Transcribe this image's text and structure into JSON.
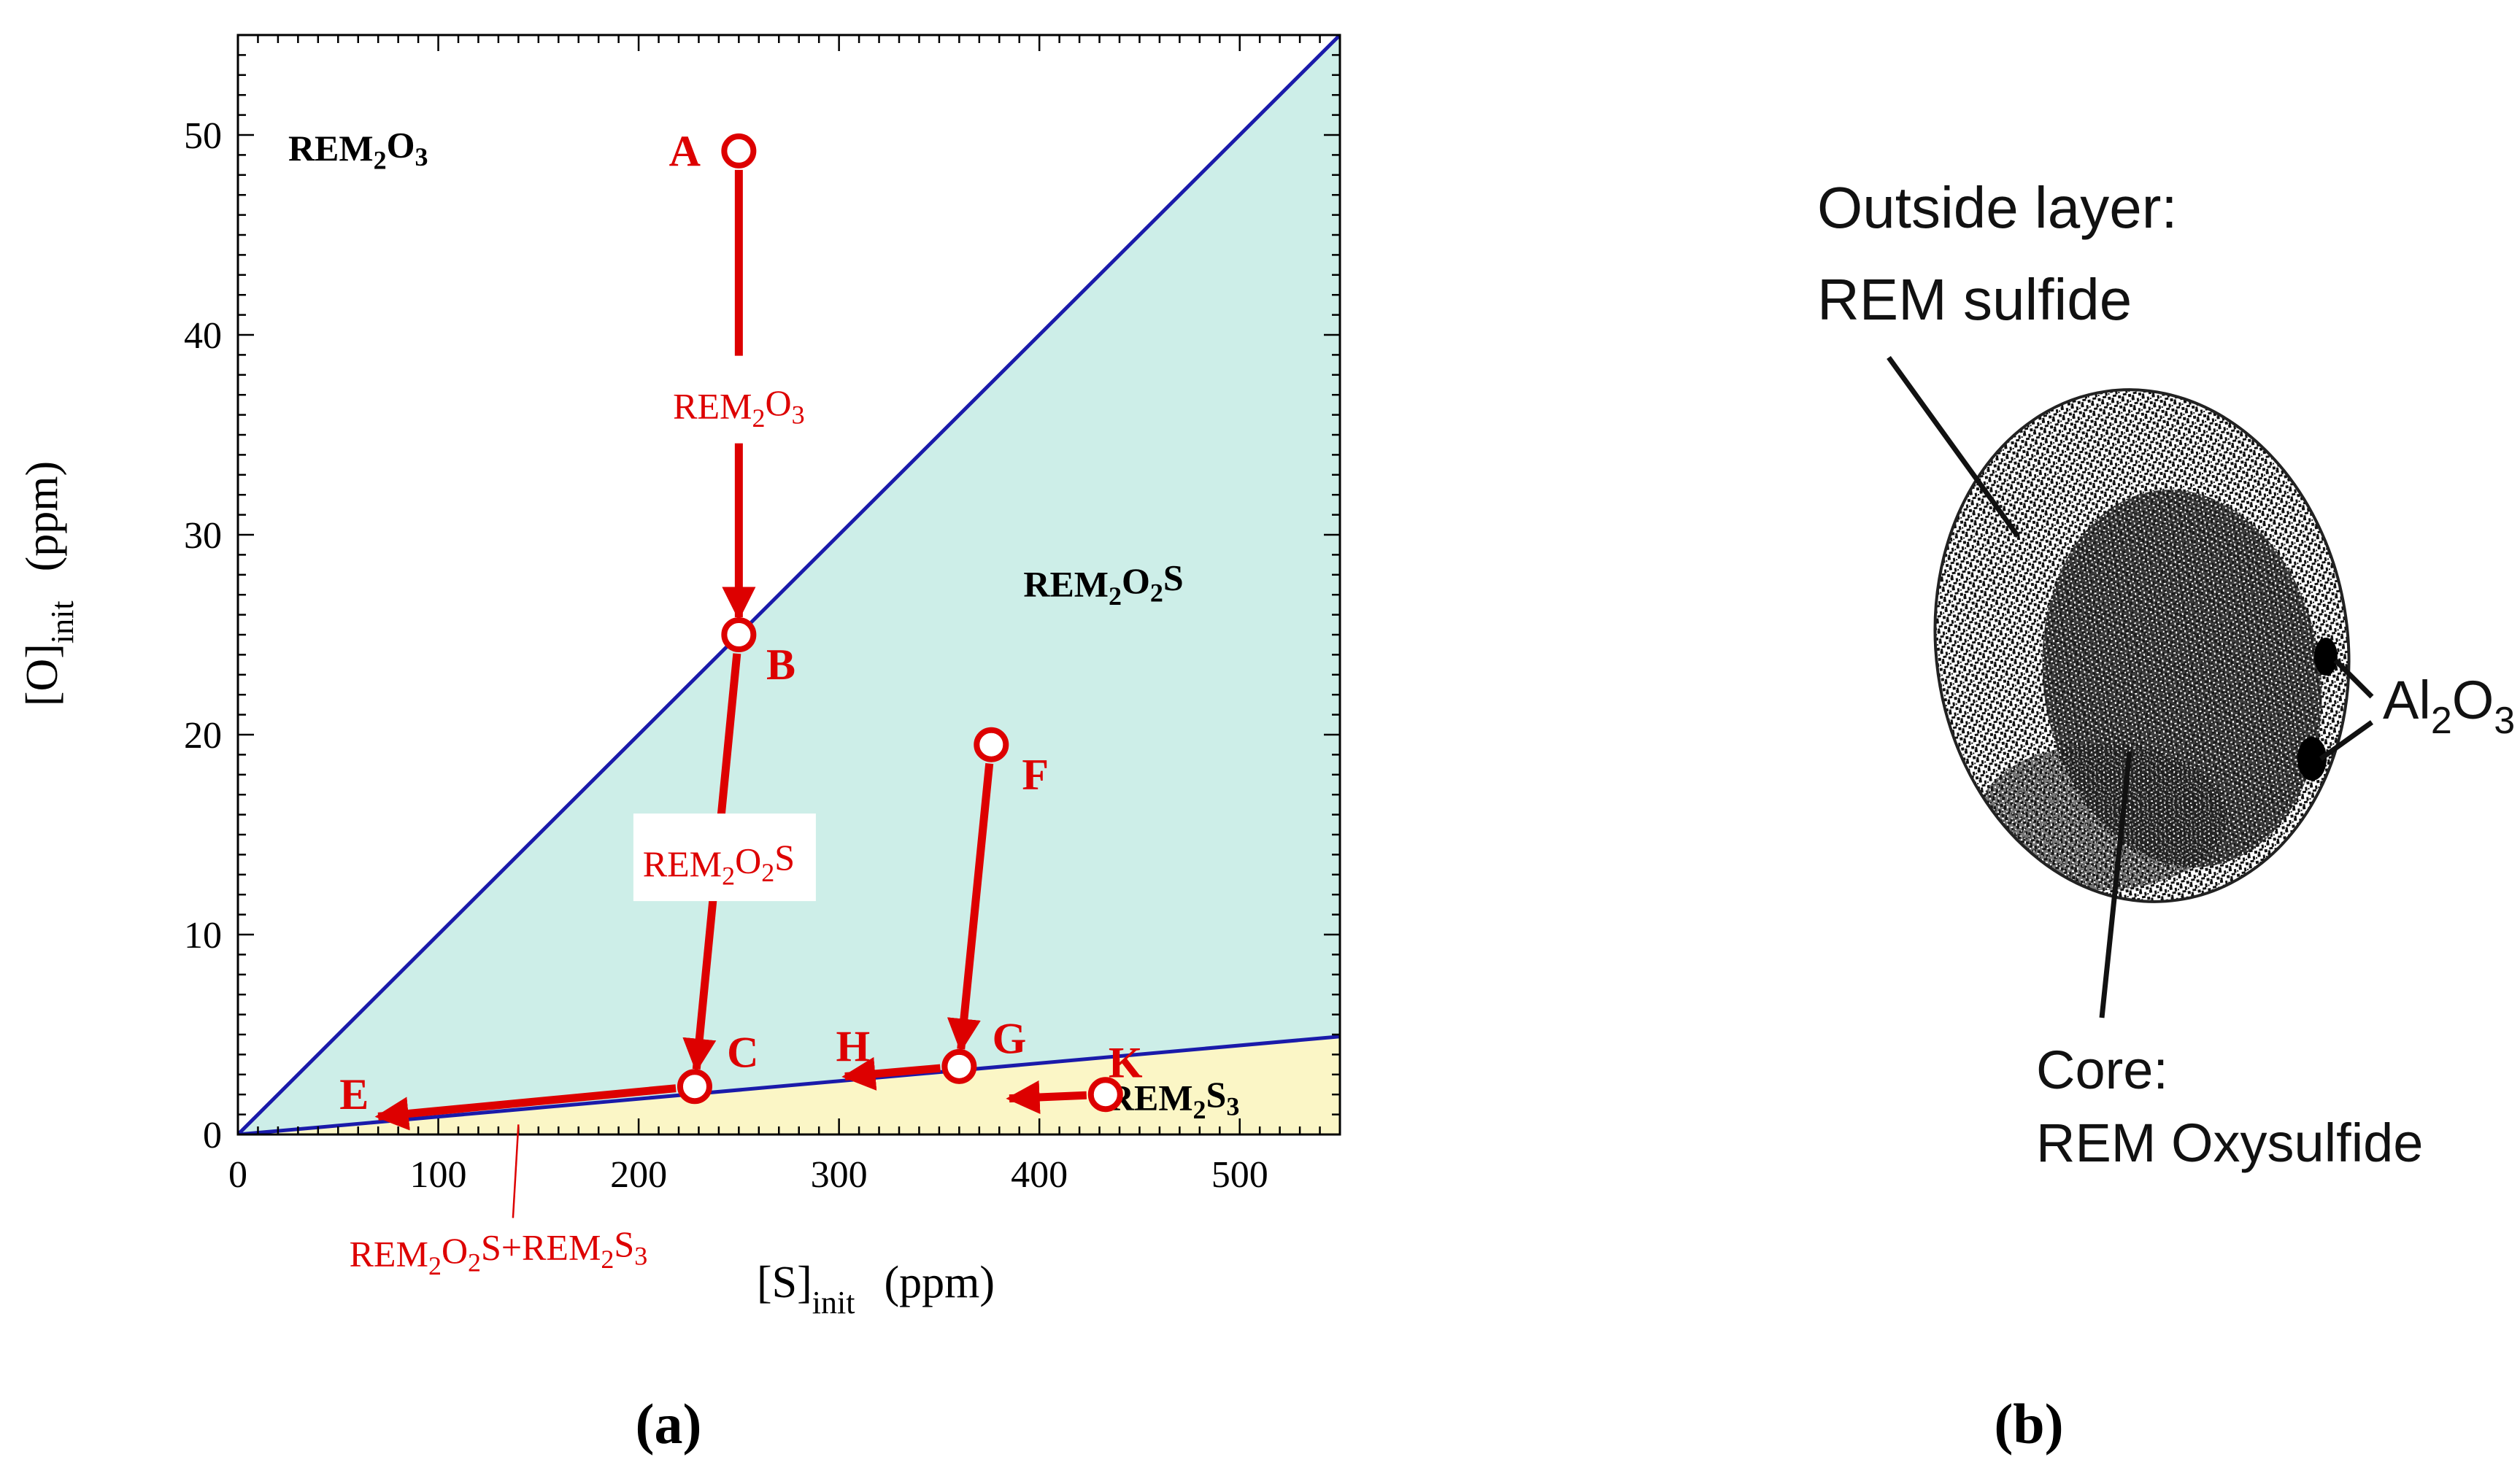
{
  "chart_data": {
    "type": "line",
    "xlabel": {
      "base": "[S]",
      "sub": "init",
      "unit": "(ppm)"
    },
    "ylabel": {
      "base": "[O]",
      "sub": "init",
      "unit": "(ppm)"
    },
    "xlim": [
      0,
      550
    ],
    "ylim": [
      0,
      55
    ],
    "xticks": [
      0,
      100,
      200,
      300,
      400,
      500
    ],
    "yticks": [
      0,
      10,
      20,
      30,
      40,
      50
    ],
    "grid": false,
    "boundaries": [
      {
        "name": "REM2O3 / REM2O2S",
        "color": "#1a1aaa",
        "points": [
          [
            0,
            0
          ],
          [
            550,
            55
          ]
        ]
      },
      {
        "name": "REM2O2S / REM2S3",
        "color": "#1a1aaa",
        "points": [
          [
            0,
            0
          ],
          [
            550,
            4.9
          ]
        ]
      }
    ],
    "regions": [
      {
        "label": "REM2O3",
        "color": "#ffffff"
      },
      {
        "label": "REM2O2S",
        "color": "#cdeee8"
      },
      {
        "label": "REM2S3",
        "color": "#fbf6c6"
      }
    ],
    "region_labels": [
      {
        "parts": [
          [
            "REM",
            ""
          ],
          [
            "2",
            "sub"
          ],
          [
            "O",
            ""
          ],
          [
            "3",
            "sub"
          ]
        ],
        "x": 60,
        "y": 49.3
      },
      {
        "parts": [
          [
            "REM",
            ""
          ],
          [
            "2",
            "sub"
          ],
          [
            "O",
            ""
          ],
          [
            "2",
            "sub"
          ],
          [
            "S",
            ""
          ]
        ],
        "x": 432,
        "y": 27.5
      },
      {
        "parts": [
          [
            "REM",
            ""
          ],
          [
            "2",
            "sub"
          ],
          [
            "S",
            ""
          ],
          [
            "3",
            "sub"
          ]
        ],
        "x": 467,
        "y": 1.8
      }
    ],
    "points": [
      {
        "label": "A",
        "x": 250,
        "y": 49.2,
        "label_x": 223,
        "label_y": 49.2
      },
      {
        "label": "B",
        "x": 250,
        "y": 25.0,
        "label_x": 271,
        "label_y": 23.5
      },
      {
        "label": "C",
        "x": 228,
        "y": 2.4,
        "label_x": 252,
        "label_y": 4.1
      },
      {
        "label": "E",
        "x": 70,
        "y": 0.9,
        "label_x": 58,
        "label_y": 2.0,
        "marker": false
      },
      {
        "label": "F",
        "x": 376,
        "y": 19.5,
        "label_x": 398,
        "label_y": 18.0
      },
      {
        "label": "G",
        "x": 360,
        "y": 3.4,
        "label_x": 385,
        "label_y": 4.8
      },
      {
        "label": "H",
        "x": 303,
        "y": 2.9,
        "label_x": 307,
        "label_y": 4.4,
        "marker": false
      },
      {
        "label": "K",
        "x": 433,
        "y": 2.0,
        "label_x": 443,
        "label_y": 3.6
      }
    ],
    "paths": [
      {
        "from": "A",
        "to": "B",
        "color": "#dd0000"
      },
      {
        "from": "B",
        "to": "C",
        "color": "#dd0000"
      },
      {
        "from": "C",
        "to": "E",
        "color": "#dd0000"
      },
      {
        "from": "F",
        "to": "G",
        "color": "#dd0000"
      },
      {
        "from": "G",
        "to": "H",
        "color": "#dd0000"
      },
      {
        "from": "K",
        "to": "K_end",
        "color": "#dd0000"
      }
    ],
    "extra_points": [
      {
        "label": "K_end",
        "x": 385,
        "y": 1.8
      }
    ],
    "path_labels": [
      {
        "parts": [
          [
            "REM",
            ""
          ],
          [
            "2",
            "sub"
          ],
          [
            "O",
            ""
          ],
          [
            "3",
            "sub"
          ]
        ],
        "x": 250,
        "y": 36.4,
        "boxed": true
      },
      {
        "parts": [
          [
            "REM",
            ""
          ],
          [
            "2",
            "sub"
          ],
          [
            "O",
            ""
          ],
          [
            "2",
            "sub"
          ],
          [
            "S",
            ""
          ]
        ],
        "x": 240,
        "y": 13.5,
        "boxed": true
      },
      {
        "parts": [
          [
            "REM",
            ""
          ],
          [
            "2",
            "sub"
          ],
          [
            "O",
            ""
          ],
          [
            "2",
            "sub"
          ],
          [
            "S+REM",
            ""
          ],
          [
            "2",
            "sub"
          ],
          [
            "S",
            ""
          ],
          [
            "3",
            "sub"
          ]
        ],
        "x": 130,
        "y": -6.0,
        "boxed": false,
        "pointer_to": [
          140,
          0.5
        ]
      }
    ],
    "colors": {
      "accent": "#dd0000",
      "boundary": "#1a1aaa"
    }
  },
  "panel_labels": {
    "a": "(a)",
    "b": "(b)"
  },
  "micrograph": {
    "callouts": [
      {
        "name": "outside",
        "lines": [
          "Outside layer:",
          "REM sulfide"
        ]
      },
      {
        "name": "core",
        "lines": [
          "Core:",
          "REM Oxysulfide"
        ]
      },
      {
        "name": "al2o3",
        "parts": [
          [
            "Al",
            ""
          ],
          [
            "2",
            "sub"
          ],
          [
            "O",
            ""
          ],
          [
            "3",
            "sub"
          ]
        ]
      }
    ]
  }
}
